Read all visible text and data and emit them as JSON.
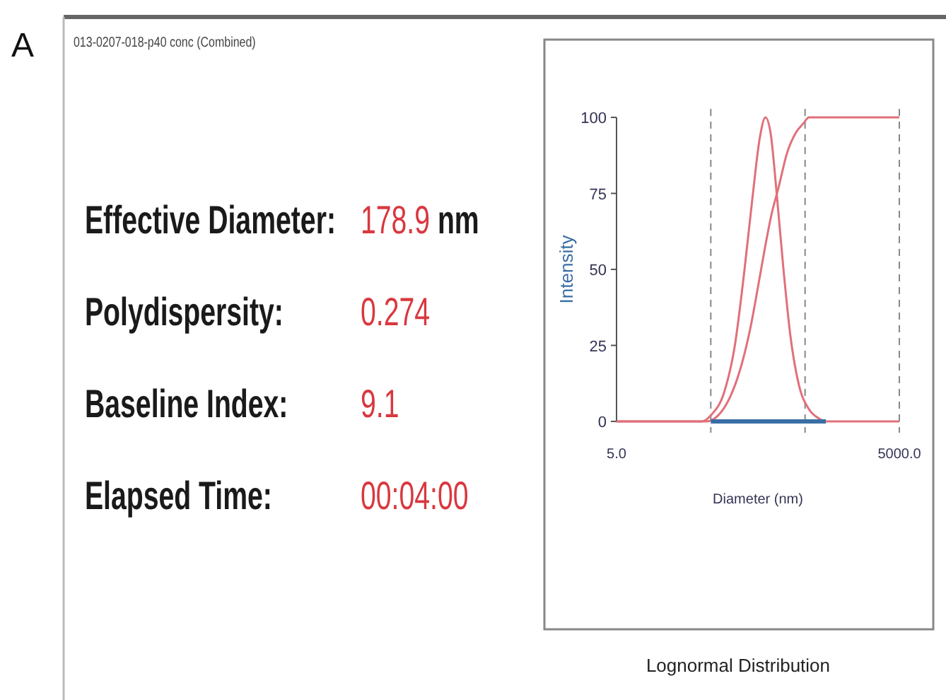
{
  "chart_data": [
    {
      "type": "other",
      "title": "013-0207-018-p40 conc (Combined)",
      "annotations": [
        "A",
        "Effective Diameter:",
        "178.9 nm",
        "Polydispersity:",
        "0.274",
        "Baseline Index:",
        "9.1",
        "Elapsed Time:",
        "00:04:00"
      ]
    },
    {
      "type": "line",
      "xlabel": "Diameter (nm)",
      "ylabel": "Intensity",
      "log": "x",
      "xlim": [
        5,
        5000
      ],
      "xticks": [
        {
          "value": 5,
          "label": "5.0"
        },
        {
          "value": 5000,
          "label": "5000.0"
        }
      ],
      "ylim": [
        0,
        100
      ],
      "yticks": [
        0,
        25,
        50,
        75,
        100
      ],
      "marker": "none",
      "line_style": "solid",
      "annotations": [
        "Lognormal Distribution"
      ],
      "ref_lines": [
        {
          "axis": "x",
          "value": 50,
          "color": "#888888",
          "line_style": "dashed"
        },
        {
          "axis": "x",
          "value": 500,
          "color": "#888888",
          "line_style": "dashed"
        },
        {
          "axis": "x",
          "value": 5000,
          "color": "#888888",
          "line_style": "dashed"
        }
      ],
      "series": [
        {
          "color": "#e0707a",
          "x": [
            5,
            40,
            50,
            70,
            90,
            114,
            140,
            165,
            190,
            215,
            250,
            295,
            350,
            430,
            550,
            700,
            830,
            5000
          ],
          "values": [
            0,
            0,
            2,
            10,
            25,
            50,
            75,
            93,
            100,
            95,
            75,
            50,
            28,
            12,
            4,
            1,
            0,
            0
          ]
        },
        {
          "color": "#e0707a",
          "x": [
            5,
            45,
            60,
            80,
            100,
            130,
            160,
            190,
            220,
            262,
            320,
            400,
            480,
            550,
            5000
          ],
          "values": [
            0,
            0,
            2,
            8,
            16,
            30,
            45,
            58,
            68,
            77,
            88,
            95,
            98,
            100,
            100
          ]
        },
        {
          "color": "#3a6ea5",
          "x": [
            50,
            830
          ],
          "values": [
            0,
            0
          ]
        }
      ]
    }
  ]
}
